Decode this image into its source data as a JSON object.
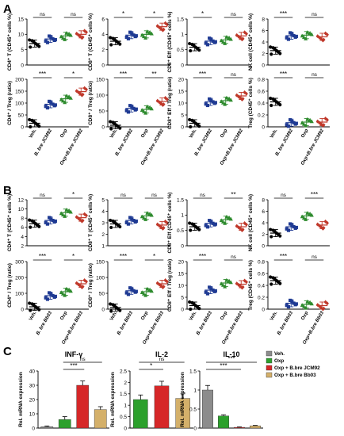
{
  "panel_letters": [
    "A",
    "B",
    "C"
  ],
  "groups_A": [
    "Veh.",
    "B. bre JCM92",
    "Oxp",
    "Oxp+B.bre JCM92"
  ],
  "groups_B": [
    "Veh.",
    "B. bre Bb03",
    "Oxp",
    "Oxp+B.bre Bb03"
  ],
  "colors": {
    "veh": "#000000",
    "bre": "#1f3a93",
    "oxp": "#2e8b2e",
    "combo": "#c0392b",
    "bar_veh": "#8c8c8c",
    "bar_oxp": "#2ca02c",
    "bar_jcm": "#d62728",
    "bar_bb03": "#d4b06a"
  },
  "chart_data": [
    {
      "id": "A-r1-c1",
      "type": "scatter",
      "ylabel": "CD4⁺ T (CD45⁺ cells %)",
      "ylim": [
        0,
        15
      ],
      "yticks": [
        0,
        5,
        10,
        15
      ],
      "means": [
        7,
        8.5,
        9.5,
        10
      ],
      "sig": [
        {
          "a": 0,
          "b": 1,
          "label": "ns"
        },
        {
          "a": 2,
          "b": 3,
          "label": "ns"
        }
      ]
    },
    {
      "id": "A-r1-c2",
      "type": "scatter",
      "ylabel": "CD8⁺ T (CD45⁺ cells %)",
      "ylim": [
        0,
        6
      ],
      "yticks": [
        0,
        2,
        4,
        6
      ],
      "means": [
        3.1,
        3.9,
        4.0,
        5.0
      ],
      "sig": [
        {
          "a": 0,
          "b": 1,
          "label": "*"
        },
        {
          "a": 2,
          "b": 3,
          "label": "*"
        }
      ]
    },
    {
      "id": "A-r1-c3",
      "type": "scatter",
      "ylabel": "CD8⁺ Eff (CD45⁺ cells %)",
      "ylim": [
        0,
        1.5
      ],
      "yticks": [
        0,
        0.5,
        1.0,
        1.5
      ],
      "means": [
        0.58,
        0.78,
        0.82,
        0.95
      ],
      "sig": [
        {
          "a": 0,
          "b": 1,
          "label": "*"
        },
        {
          "a": 2,
          "b": 3,
          "label": "ns"
        }
      ]
    },
    {
      "id": "A-r1-c4",
      "type": "scatter",
      "ylabel": "NK cell (CD45⁺ cells %)",
      "ylim": [
        0,
        8
      ],
      "yticks": [
        0,
        2,
        4,
        6,
        8
      ],
      "means": [
        2.5,
        5.1,
        5.2,
        4.9
      ],
      "sig": [
        {
          "a": 0,
          "b": 1,
          "label": "***"
        },
        {
          "a": 2,
          "b": 3,
          "label": "ns"
        }
      ]
    },
    {
      "id": "A-r2-c1",
      "type": "scatter",
      "ylabel": "CD4⁺ / Treg (ratio)",
      "ylim": [
        0,
        200
      ],
      "yticks": [
        0,
        50,
        100,
        150,
        200
      ],
      "means": [
        15,
        95,
        118,
        148
      ],
      "sig": [
        {
          "a": 0,
          "b": 1,
          "label": "***"
        },
        {
          "a": 2,
          "b": 3,
          "label": "*"
        }
      ]
    },
    {
      "id": "A-r2-c2",
      "type": "scatter",
      "ylabel": "CD8⁺ / Treg (ratio)",
      "ylim": [
        0,
        150
      ],
      "yticks": [
        0,
        50,
        100,
        150
      ],
      "means": [
        5,
        58,
        55,
        80
      ],
      "sig": [
        {
          "a": 0,
          "b": 1,
          "label": "***"
        },
        {
          "a": 2,
          "b": 3,
          "label": "**"
        }
      ]
    },
    {
      "id": "A-r2-c3",
      "type": "scatter",
      "ylabel": "CD8⁺ Eff / Treg (ratio)",
      "ylim": [
        0,
        20
      ],
      "yticks": [
        0,
        5,
        10,
        15,
        20
      ],
      "means": [
        1.5,
        10.5,
        11,
        13
      ],
      "sig": [
        {
          "a": 0,
          "b": 1,
          "label": "***"
        },
        {
          "a": 2,
          "b": 3,
          "label": "ns"
        }
      ]
    },
    {
      "id": "A-r2-c4",
      "type": "scatter",
      "ylabel": "Treg (CD45⁺ cells %)",
      "ylim": [
        0,
        0.8
      ],
      "yticks": [
        0,
        0.2,
        0.4,
        0.6,
        0.8
      ],
      "means": [
        0.42,
        0.07,
        0.08,
        0.08
      ],
      "sig": [
        {
          "a": 0,
          "b": 1,
          "label": "***"
        },
        {
          "a": 2,
          "b": 3,
          "label": "ns"
        }
      ]
    },
    {
      "id": "B-r1-c1",
      "type": "scatter",
      "ylabel": "CD4⁺ T (CD45⁺ cells %)",
      "ylim": [
        2,
        12
      ],
      "yticks": [
        2,
        4,
        6,
        8,
        10,
        12
      ],
      "means": [
        6.8,
        7.5,
        9.2,
        8.1
      ],
      "sig": [
        {
          "a": 0,
          "b": 1,
          "label": "ns"
        },
        {
          "a": 2,
          "b": 3,
          "label": "*"
        }
      ]
    },
    {
      "id": "B-r1-c2",
      "type": "scatter",
      "ylabel": "CD8⁺ T (CD45⁺ cells %)",
      "ylim": [
        1,
        5
      ],
      "yticks": [
        1,
        2,
        3,
        4,
        5
      ],
      "means": [
        2.9,
        3.2,
        3.6,
        2.8
      ],
      "sig": [
        {
          "a": 0,
          "b": 1,
          "label": "ns"
        },
        {
          "a": 2,
          "b": 3,
          "label": "ns"
        }
      ]
    },
    {
      "id": "B-r1-c3",
      "type": "scatter",
      "ylabel": "CD8⁺ Eff (CD45⁺ cells %)",
      "ylim": [
        0,
        1.5
      ],
      "yticks": [
        0,
        0.5,
        1.0,
        1.5
      ],
      "means": [
        0.62,
        0.73,
        0.85,
        0.62
      ],
      "sig": [
        {
          "a": 0,
          "b": 1,
          "label": "ns"
        },
        {
          "a": 2,
          "b": 3,
          "label": "**"
        }
      ]
    },
    {
      "id": "B-r1-c4",
      "type": "scatter",
      "ylabel": "NK cell (CD45⁺ cells %)",
      "ylim": [
        0,
        8
      ],
      "yticks": [
        0,
        2,
        4,
        6,
        8
      ],
      "means": [
        2.2,
        3.3,
        5.2,
        3.6
      ],
      "sig": [
        {
          "a": 0,
          "b": 1,
          "label": "ns"
        },
        {
          "a": 2,
          "b": 3,
          "label": "***"
        }
      ]
    },
    {
      "id": "B-r2-c1",
      "type": "scatter",
      "ylabel": "CD4⁺ / Treg (ratio)",
      "ylim": [
        0,
        300
      ],
      "yticks": [
        0,
        100,
        200,
        300
      ],
      "means": [
        15,
        85,
        110,
        160
      ],
      "sig": [
        {
          "a": 0,
          "b": 1,
          "label": "***"
        },
        {
          "a": 2,
          "b": 3,
          "label": "*"
        }
      ]
    },
    {
      "id": "B-r2-c2",
      "type": "scatter",
      "ylabel": "CD8⁺ / Treg (ratio)",
      "ylim": [
        0,
        150
      ],
      "yticks": [
        0,
        50,
        100,
        150
      ],
      "means": [
        5,
        58,
        55,
        80
      ],
      "sig": [
        {
          "a": 0,
          "b": 1,
          "label": "***"
        },
        {
          "a": 2,
          "b": 3,
          "label": "*"
        }
      ]
    },
    {
      "id": "B-r2-c3",
      "type": "scatter",
      "ylabel": "CD8⁺ Eff / Treg (ratio)",
      "ylim": [
        0,
        20
      ],
      "yticks": [
        0,
        5,
        10,
        15,
        20
      ],
      "means": [
        1.5,
        8,
        11,
        10.5
      ],
      "sig": [
        {
          "a": 0,
          "b": 1,
          "label": "***"
        },
        {
          "a": 2,
          "b": 3,
          "label": "ns"
        }
      ]
    },
    {
      "id": "B-r2-c4",
      "type": "scatter",
      "ylabel": "Treg (CD45⁺ cells %)",
      "ylim": [
        0,
        0.8
      ],
      "yticks": [
        0,
        0.2,
        0.4,
        0.6,
        0.8
      ],
      "means": [
        0.48,
        0.1,
        0.08,
        0.06
      ],
      "sig": [
        {
          "a": 0,
          "b": 1,
          "label": "***"
        },
        {
          "a": 2,
          "b": 3,
          "label": "ns"
        }
      ]
    },
    {
      "id": "C-1",
      "type": "bar",
      "title": "INF-γ",
      "ylabel": "Rel. mRNA expression",
      "ylim": [
        0,
        40
      ],
      "yticks": [
        0,
        10,
        20,
        30,
        40
      ],
      "values": [
        1,
        6,
        30,
        13
      ],
      "errors": [
        0.5,
        2,
        3,
        2
      ],
      "sig": [
        {
          "a": 1,
          "b": 2,
          "label": "***"
        },
        {
          "a": 1,
          "b": 3,
          "label": "ns"
        }
      ]
    },
    {
      "id": "C-2",
      "type": "bar",
      "title": "IL-2",
      "ylabel": "Rel. mRNA expression",
      "ylim": [
        0,
        2.5
      ],
      "yticks": [
        0,
        0.5,
        1.0,
        1.5,
        2.0,
        2.5
      ],
      "values": [
        1.25,
        1.85,
        1.3
      ],
      "errors": [
        0.2,
        0.2,
        0.2
      ],
      "colors_idx": [
        1,
        2,
        3
      ],
      "sig": [
        {
          "a": 0,
          "b": 1,
          "label": "*"
        },
        {
          "a": 0,
          "b": 2,
          "label": "ns"
        }
      ]
    },
    {
      "id": "C-3",
      "type": "bar",
      "title": "IL-10",
      "ylabel": "Rel. mRNA expression",
      "ylim": [
        0,
        1.5
      ],
      "yticks": [
        0,
        0.5,
        1.0,
        1.5
      ],
      "values": [
        1.0,
        0.32,
        0.02,
        0.06
      ],
      "errors": [
        0.12,
        0.03,
        0.01,
        0.01
      ],
      "sig": [
        {
          "a": 0,
          "b": 2,
          "label": "***"
        },
        {
          "a": 0,
          "b": 3,
          "label": "***"
        }
      ]
    }
  ],
  "legend_C": [
    "Veh.",
    "Oxp",
    "Oxp + B.bre JCM92",
    "Oxp + B.bre Bb03"
  ]
}
